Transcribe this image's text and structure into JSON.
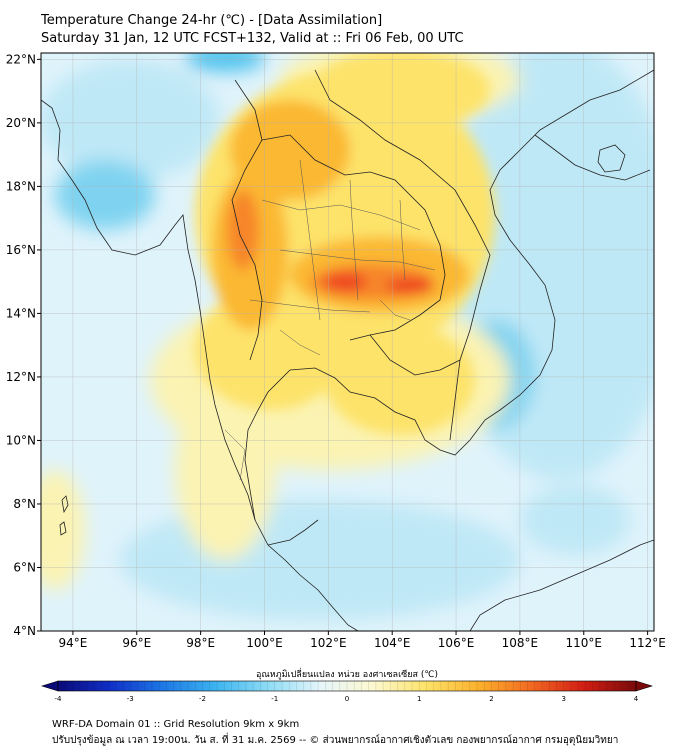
{
  "header": {
    "title_line1": "Temperature Change 24-hr (℃) - [Data Assimilation]",
    "title_line2": "Saturday 31 Jan, 12 UTC FCST+132, Valid at :: Fri 06 Feb, 00 UTC"
  },
  "map": {
    "lat_labels": [
      "22°N",
      "20°N",
      "18°N",
      "16°N",
      "14°N",
      "12°N",
      "10°N",
      "8°N",
      "6°N",
      "4°N"
    ],
    "lat_values": [
      22,
      20,
      18,
      16,
      14,
      12,
      10,
      8,
      6,
      4
    ],
    "lon_labels": [
      "94°E",
      "96°E",
      "98°E",
      "100°E",
      "102°E",
      "104°E",
      "106°E",
      "108°E",
      "110°E",
      "112°E"
    ],
    "lon_values": [
      94,
      96,
      98,
      100,
      102,
      104,
      106,
      108,
      110,
      112
    ],
    "lon_range": [
      93,
      112.2
    ],
    "lat_range": [
      4,
      22.2
    ],
    "grid": true,
    "field_colors": {
      "sea": "#dff3fb",
      "pale_blue": "#bfe8f6",
      "blue": "#7fd3f0",
      "cyan": "#4fc3ee",
      "pale_yellow": "#fbf3b2",
      "yellow": "#fde36a",
      "orange": "#fbb830",
      "dark_orange": "#f7862a",
      "red": "#ef4a20"
    }
  },
  "colorbar": {
    "label": "อุณหภูมิเปลี่ยนแปลง หน่วย องศาเซลเซียส (℃)",
    "ticks": [
      "-4",
      "-3",
      "-2",
      "-1",
      "0",
      "1",
      "2",
      "3",
      "4"
    ],
    "tick_values": [
      -4,
      -3,
      -2,
      -1,
      0,
      1,
      2,
      3,
      4
    ],
    "range": [
      -4,
      4
    ],
    "colors": [
      "#0a0a78",
      "#1030c8",
      "#1e78e6",
      "#3cb4f0",
      "#8edcf5",
      "#e6f6fb",
      "#fdf8d0",
      "#fde36a",
      "#fbb12c",
      "#f26a22",
      "#d21e14",
      "#7a0a0a"
    ]
  },
  "footer": {
    "line1": "WRF-DA Domain 01 :: Grid Resolution 9km x 9km",
    "line2": "ปรับปรุงข้อมูล ณ เวลา 19:00น. วัน ส. ที่ 31 ม.ค. 2569 -- © ส่วนพยากรณ์อากาศเชิงตัวเลข กองพยากรณ์อากาศ กรมอุตุนิยมวิทยา"
  }
}
